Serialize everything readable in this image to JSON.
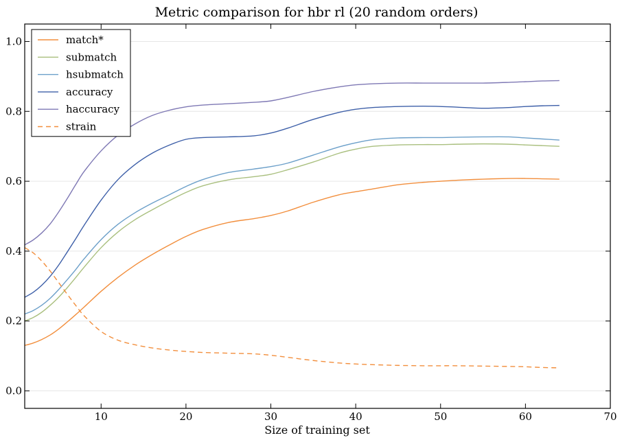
{
  "chart_data": {
    "type": "line",
    "title": "Metric comparison for hbr rl (20 random orders)",
    "xlabel": "Size of training set",
    "ylabel": "",
    "xlim": [
      1,
      70
    ],
    "ylim": [
      -0.05,
      1.05
    ],
    "xticks": [
      10,
      20,
      30,
      40,
      50,
      60,
      70
    ],
    "yticks": [
      0.0,
      0.2,
      0.4,
      0.6,
      0.8,
      1.0
    ],
    "xtick_labels": [
      "10",
      "20",
      "30",
      "40",
      "50",
      "60",
      "70"
    ],
    "ytick_labels": [
      "0.0",
      "0.2",
      "0.4",
      "0.6",
      "0.8",
      "1.0"
    ],
    "grid": true,
    "legend_position": "top-left",
    "x": [
      1,
      2,
      3,
      4,
      5,
      6,
      7,
      8,
      10,
      12,
      14,
      16,
      18,
      20,
      22,
      25,
      28,
      30,
      32,
      35,
      38,
      40,
      42,
      45,
      48,
      50,
      52,
      55,
      58,
      60,
      62,
      64
    ],
    "series": [
      {
        "name": "match*",
        "color": "#f28e3c",
        "dash": "solid",
        "values": [
          0.13,
          0.137,
          0.147,
          0.16,
          0.177,
          0.197,
          0.218,
          0.24,
          0.285,
          0.325,
          0.36,
          0.39,
          0.417,
          0.442,
          0.462,
          0.482,
          0.493,
          0.502,
          0.515,
          0.54,
          0.561,
          0.57,
          0.578,
          0.59,
          0.597,
          0.6,
          0.603,
          0.606,
          0.608,
          0.608,
          0.607,
          0.606
        ]
      },
      {
        "name": "submatch",
        "color": "#a9bf7e",
        "dash": "solid",
        "values": [
          0.2,
          0.21,
          0.225,
          0.245,
          0.268,
          0.295,
          0.324,
          0.354,
          0.41,
          0.455,
          0.49,
          0.518,
          0.544,
          0.568,
          0.587,
          0.604,
          0.613,
          0.62,
          0.633,
          0.655,
          0.68,
          0.692,
          0.7,
          0.704,
          0.705,
          0.705,
          0.706,
          0.707,
          0.706,
          0.704,
          0.702,
          0.7
        ]
      },
      {
        "name": "hsubmatch",
        "color": "#6b9fc9",
        "dash": "solid",
        "values": [
          0.22,
          0.23,
          0.245,
          0.265,
          0.29,
          0.318,
          0.347,
          0.378,
          0.433,
          0.477,
          0.51,
          0.537,
          0.561,
          0.585,
          0.605,
          0.625,
          0.635,
          0.642,
          0.652,
          0.675,
          0.698,
          0.71,
          0.719,
          0.724,
          0.725,
          0.725,
          0.726,
          0.727,
          0.727,
          0.724,
          0.721,
          0.718
        ]
      },
      {
        "name": "accuracy",
        "color": "#3d5fa8",
        "dash": "solid",
        "values": [
          0.268,
          0.282,
          0.302,
          0.328,
          0.36,
          0.397,
          0.435,
          0.474,
          0.546,
          0.605,
          0.648,
          0.68,
          0.703,
          0.72,
          0.725,
          0.727,
          0.73,
          0.738,
          0.752,
          0.777,
          0.797,
          0.806,
          0.811,
          0.814,
          0.815,
          0.814,
          0.812,
          0.809,
          0.811,
          0.814,
          0.816,
          0.817
        ]
      },
      {
        "name": "haccuracy",
        "color": "#7e78b4",
        "dash": "solid",
        "values": [
          0.418,
          0.432,
          0.452,
          0.478,
          0.512,
          0.55,
          0.59,
          0.628,
          0.687,
          0.732,
          0.764,
          0.788,
          0.803,
          0.813,
          0.818,
          0.822,
          0.826,
          0.83,
          0.84,
          0.857,
          0.87,
          0.876,
          0.879,
          0.881,
          0.881,
          0.881,
          0.881,
          0.881,
          0.883,
          0.885,
          0.887,
          0.888
        ]
      },
      {
        "name": "strain",
        "color": "#f28e3c",
        "dash": "dashed",
        "values": [
          0.41,
          0.395,
          0.372,
          0.343,
          0.31,
          0.277,
          0.245,
          0.215,
          0.17,
          0.145,
          0.132,
          0.123,
          0.117,
          0.113,
          0.11,
          0.108,
          0.106,
          0.102,
          0.096,
          0.087,
          0.08,
          0.077,
          0.075,
          0.073,
          0.072,
          0.072,
          0.072,
          0.071,
          0.07,
          0.069,
          0.067,
          0.066
        ]
      }
    ]
  }
}
